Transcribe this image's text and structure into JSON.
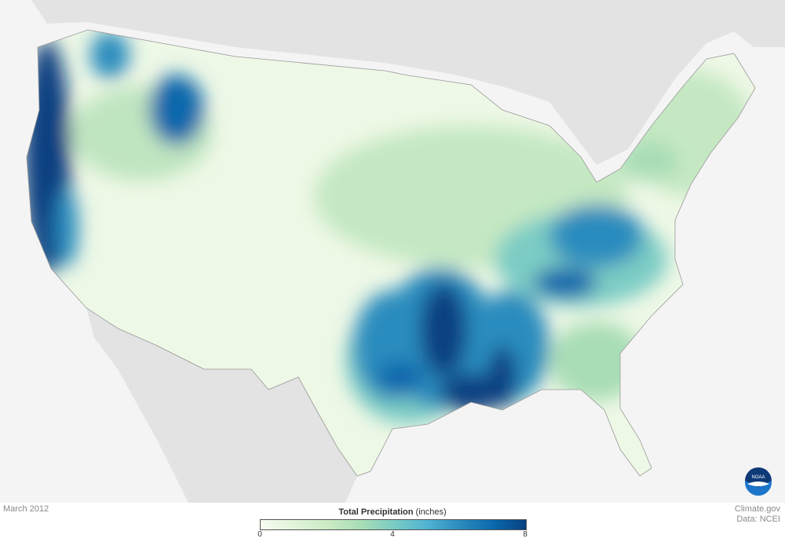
{
  "map": {
    "date_label": "March 2012",
    "credit_line1": "Climate.gov",
    "credit_line2": "Data: NCEI",
    "logo_text": "NOAA",
    "legend": {
      "title": "Total Precipitation",
      "units": "(inches)",
      "ticks": [
        "0",
        "4",
        "8"
      ],
      "range": [
        0,
        8
      ],
      "colors": [
        "#f7fcf0",
        "#ccebc5",
        "#a8ddb5",
        "#7bccc4",
        "#4eb3d3",
        "#2b8cbe",
        "#0868ac",
        "#084081"
      ]
    }
  }
}
